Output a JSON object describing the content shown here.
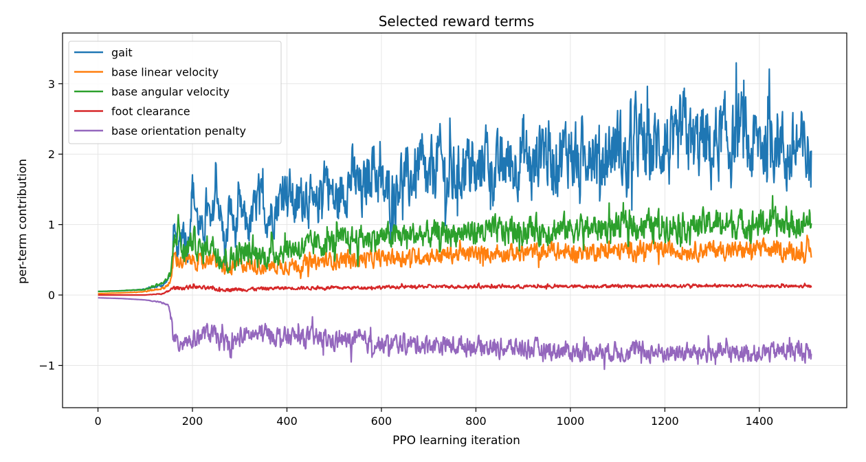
{
  "chart_data": {
    "type": "line",
    "title": "Selected reward terms",
    "xlabel": "PPO learning iteration",
    "ylabel": "per-term contribution",
    "xlim": [
      -75,
      1585
    ],
    "ylim": [
      -1.6,
      3.72
    ],
    "xticks": [
      0,
      200,
      400,
      600,
      800,
      1000,
      1200,
      1400
    ],
    "yticks": [
      -1,
      0,
      1,
      2,
      3
    ],
    "ytick_labels": [
      "−1",
      "0",
      "1",
      "2",
      "3"
    ],
    "grid": true,
    "legend_position": "upper-left",
    "series": [
      {
        "name": "gait",
        "color": "#1f77b4",
        "x": [
          0,
          50,
          100,
          140,
          155,
          160,
          170,
          180,
          190,
          200,
          210,
          220,
          230,
          240,
          250,
          260,
          270,
          280,
          290,
          300,
          320,
          340,
          360,
          380,
          400,
          420,
          440,
          460,
          480,
          500,
          520,
          540,
          560,
          580,
          600,
          620,
          640,
          660,
          680,
          700,
          720,
          740,
          760,
          780,
          800,
          820,
          840,
          860,
          880,
          900,
          920,
          940,
          960,
          980,
          1000,
          1020,
          1040,
          1060,
          1080,
          1100,
          1120,
          1140,
          1160,
          1180,
          1200,
          1220,
          1240,
          1260,
          1280,
          1300,
          1320,
          1340,
          1360,
          1380,
          1400,
          1420,
          1440,
          1460,
          1480,
          1500,
          1510
        ],
        "y": [
          0.05,
          0.06,
          0.08,
          0.15,
          0.3,
          0.8,
          0.55,
          1.0,
          0.7,
          1.55,
          1.1,
          0.8,
          1.3,
          0.9,
          1.6,
          1.1,
          0.6,
          1.3,
          0.85,
          1.2,
          0.95,
          1.4,
          1.1,
          1.3,
          1.6,
          1.2,
          1.5,
          1.1,
          1.8,
          1.3,
          1.5,
          1.7,
          1.4,
          1.9,
          1.5,
          1.4,
          1.7,
          1.6,
          1.8,
          1.5,
          2.0,
          1.6,
          1.7,
          1.9,
          1.6,
          2.1,
          1.7,
          1.9,
          1.8,
          2.1,
          1.7,
          2.2,
          1.9,
          2.0,
          2.1,
          1.7,
          2.2,
          1.9,
          2.0,
          2.2,
          1.8,
          2.3,
          2.0,
          2.1,
          2.2,
          1.9,
          2.4,
          2.1,
          2.2,
          2.0,
          2.3,
          2.1,
          2.4,
          2.0,
          2.2,
          2.1,
          2.3,
          1.9,
          2.1,
          2.0,
          1.9
        ],
        "amp": [
          0.0,
          0.0,
          0.01,
          0.03,
          0.05,
          0.25,
          0.25,
          0.3,
          0.3,
          0.3,
          0.3,
          0.3,
          0.3,
          0.3,
          0.3,
          0.3,
          0.3,
          0.3,
          0.3,
          0.3,
          0.3,
          0.35,
          0.35,
          0.35,
          0.35,
          0.4,
          0.4,
          0.4,
          0.4,
          0.4,
          0.4,
          0.45,
          0.45,
          0.45,
          0.45,
          0.45,
          0.45,
          0.45,
          0.5,
          0.5,
          0.5,
          0.5,
          0.5,
          0.5,
          0.5,
          0.5,
          0.5,
          0.5,
          0.5,
          0.55,
          0.55,
          0.55,
          0.55,
          0.55,
          0.55,
          0.55,
          0.55,
          0.55,
          0.55,
          0.55,
          0.6,
          0.6,
          0.6,
          0.6,
          0.6,
          0.6,
          0.6,
          0.6,
          0.6,
          0.6,
          0.6,
          0.6,
          0.6,
          0.6,
          0.6,
          0.6,
          0.6,
          0.6,
          0.6,
          0.6,
          0.6
        ]
      },
      {
        "name": "base linear velocity",
        "color": "#ff7f0e",
        "x": [
          0,
          50,
          100,
          140,
          155,
          160,
          180,
          200,
          220,
          240,
          260,
          280,
          300,
          350,
          400,
          450,
          500,
          550,
          600,
          650,
          700,
          750,
          800,
          850,
          900,
          950,
          1000,
          1050,
          1100,
          1150,
          1200,
          1250,
          1300,
          1350,
          1400,
          1450,
          1500,
          1510
        ],
        "y": [
          0.02,
          0.03,
          0.05,
          0.1,
          0.2,
          0.55,
          0.45,
          0.5,
          0.45,
          0.55,
          0.4,
          0.35,
          0.45,
          0.4,
          0.42,
          0.45,
          0.5,
          0.5,
          0.52,
          0.55,
          0.55,
          0.58,
          0.58,
          0.6,
          0.6,
          0.62,
          0.6,
          0.63,
          0.62,
          0.65,
          0.65,
          0.63,
          0.65,
          0.63,
          0.65,
          0.63,
          0.6,
          0.6
        ],
        "amp": [
          0.0,
          0.0,
          0.01,
          0.02,
          0.05,
          0.12,
          0.12,
          0.12,
          0.12,
          0.12,
          0.12,
          0.12,
          0.12,
          0.12,
          0.12,
          0.12,
          0.13,
          0.13,
          0.13,
          0.13,
          0.13,
          0.13,
          0.13,
          0.13,
          0.14,
          0.14,
          0.14,
          0.14,
          0.14,
          0.14,
          0.14,
          0.14,
          0.14,
          0.14,
          0.14,
          0.14,
          0.14,
          0.14
        ]
      },
      {
        "name": "base angular velocity",
        "color": "#2ca02c",
        "x": [
          0,
          50,
          100,
          140,
          155,
          160,
          170,
          180,
          200,
          220,
          240,
          260,
          280,
          300,
          350,
          400,
          450,
          500,
          550,
          600,
          650,
          700,
          750,
          800,
          850,
          900,
          950,
          1000,
          1050,
          1100,
          1150,
          1200,
          1250,
          1300,
          1350,
          1400,
          1450,
          1500,
          1510
        ],
        "y": [
          0.05,
          0.06,
          0.08,
          0.18,
          0.3,
          0.7,
          1.0,
          0.55,
          0.8,
          0.6,
          0.75,
          0.55,
          0.5,
          0.6,
          0.55,
          0.65,
          0.7,
          0.75,
          0.8,
          0.82,
          0.85,
          0.85,
          0.88,
          0.9,
          0.9,
          0.92,
          0.92,
          0.95,
          0.95,
          0.97,
          1.0,
          1.0,
          0.98,
          1.02,
          1.0,
          1.02,
          1.0,
          0.98,
          1.0
        ],
        "amp": [
          0.0,
          0.0,
          0.01,
          0.03,
          0.05,
          0.2,
          0.2,
          0.2,
          0.2,
          0.2,
          0.2,
          0.2,
          0.2,
          0.2,
          0.2,
          0.2,
          0.2,
          0.2,
          0.2,
          0.2,
          0.2,
          0.2,
          0.2,
          0.22,
          0.22,
          0.22,
          0.22,
          0.22,
          0.22,
          0.22,
          0.22,
          0.22,
          0.22,
          0.22,
          0.22,
          0.22,
          0.22,
          0.22,
          0.22
        ]
      },
      {
        "name": "foot clearance",
        "color": "#d62728",
        "x": [
          0,
          100,
          140,
          160,
          180,
          200,
          250,
          300,
          400,
          500,
          600,
          700,
          800,
          900,
          1000,
          1100,
          1200,
          1300,
          1400,
          1500,
          1510
        ],
        "y": [
          0.0,
          0.0,
          0.02,
          0.1,
          0.1,
          0.12,
          0.08,
          0.08,
          0.1,
          0.1,
          0.11,
          0.12,
          0.12,
          0.12,
          0.12,
          0.13,
          0.13,
          0.13,
          0.13,
          0.12,
          0.12
        ],
        "amp": [
          0.0,
          0.0,
          0.01,
          0.03,
          0.03,
          0.03,
          0.03,
          0.03,
          0.025,
          0.025,
          0.025,
          0.025,
          0.025,
          0.025,
          0.025,
          0.025,
          0.025,
          0.025,
          0.025,
          0.025,
          0.025
        ]
      },
      {
        "name": "base orientation penalty",
        "color": "#9467bd",
        "x": [
          0,
          50,
          100,
          130,
          150,
          155,
          160,
          170,
          180,
          200,
          220,
          240,
          260,
          280,
          300,
          350,
          400,
          450,
          500,
          550,
          600,
          650,
          700,
          750,
          800,
          850,
          900,
          950,
          1000,
          1050,
          1100,
          1150,
          1200,
          1250,
          1300,
          1350,
          1400,
          1450,
          1500,
          1510
        ],
        "y": [
          -0.04,
          -0.05,
          -0.07,
          -0.1,
          -0.15,
          -0.3,
          -0.65,
          -0.7,
          -0.6,
          -0.65,
          -0.55,
          -0.55,
          -0.65,
          -0.75,
          -0.6,
          -0.55,
          -0.6,
          -0.6,
          -0.65,
          -0.65,
          -0.7,
          -0.7,
          -0.7,
          -0.72,
          -0.72,
          -0.75,
          -0.75,
          -0.78,
          -0.8,
          -0.8,
          -0.8,
          -0.8,
          -0.82,
          -0.82,
          -0.82,
          -0.82,
          -0.82,
          -0.8,
          -0.8,
          -0.85
        ],
        "amp": [
          0.0,
          0.0,
          0.0,
          0.01,
          0.02,
          0.05,
          0.15,
          0.15,
          0.15,
          0.15,
          0.15,
          0.15,
          0.15,
          0.15,
          0.15,
          0.15,
          0.15,
          0.15,
          0.15,
          0.15,
          0.15,
          0.15,
          0.15,
          0.15,
          0.15,
          0.15,
          0.15,
          0.15,
          0.15,
          0.15,
          0.15,
          0.15,
          0.15,
          0.15,
          0.15,
          0.15,
          0.15,
          0.15,
          0.15,
          0.15
        ]
      }
    ]
  }
}
